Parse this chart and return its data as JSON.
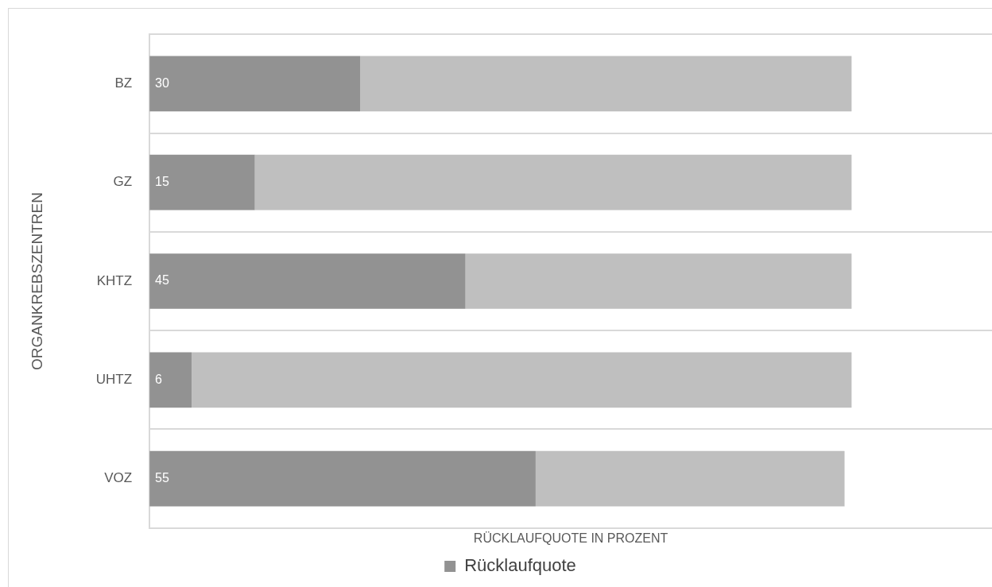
{
  "chart_data": {
    "type": "bar",
    "orientation": "horizontal",
    "stacked": true,
    "xlabel": "RÜCKLAUFQUOTE IN PROZENT",
    "ylabel": "ORGANKREBSZENTREN",
    "categories": [
      "BZ",
      "GZ",
      "KHTZ",
      "UHTZ",
      "VOZ"
    ],
    "series": [
      {
        "name": "Rücklaufquote",
        "color": "#929292",
        "values": [
          30,
          15,
          45,
          6,
          55
        ],
        "value_labels": [
          "30",
          "15",
          "45",
          "6",
          "55"
        ]
      },
      {
        "color": "#bfbfbf",
        "values": [
          70,
          85,
          55,
          94,
          44
        ]
      }
    ],
    "grid": "y",
    "legend": "bottom"
  }
}
